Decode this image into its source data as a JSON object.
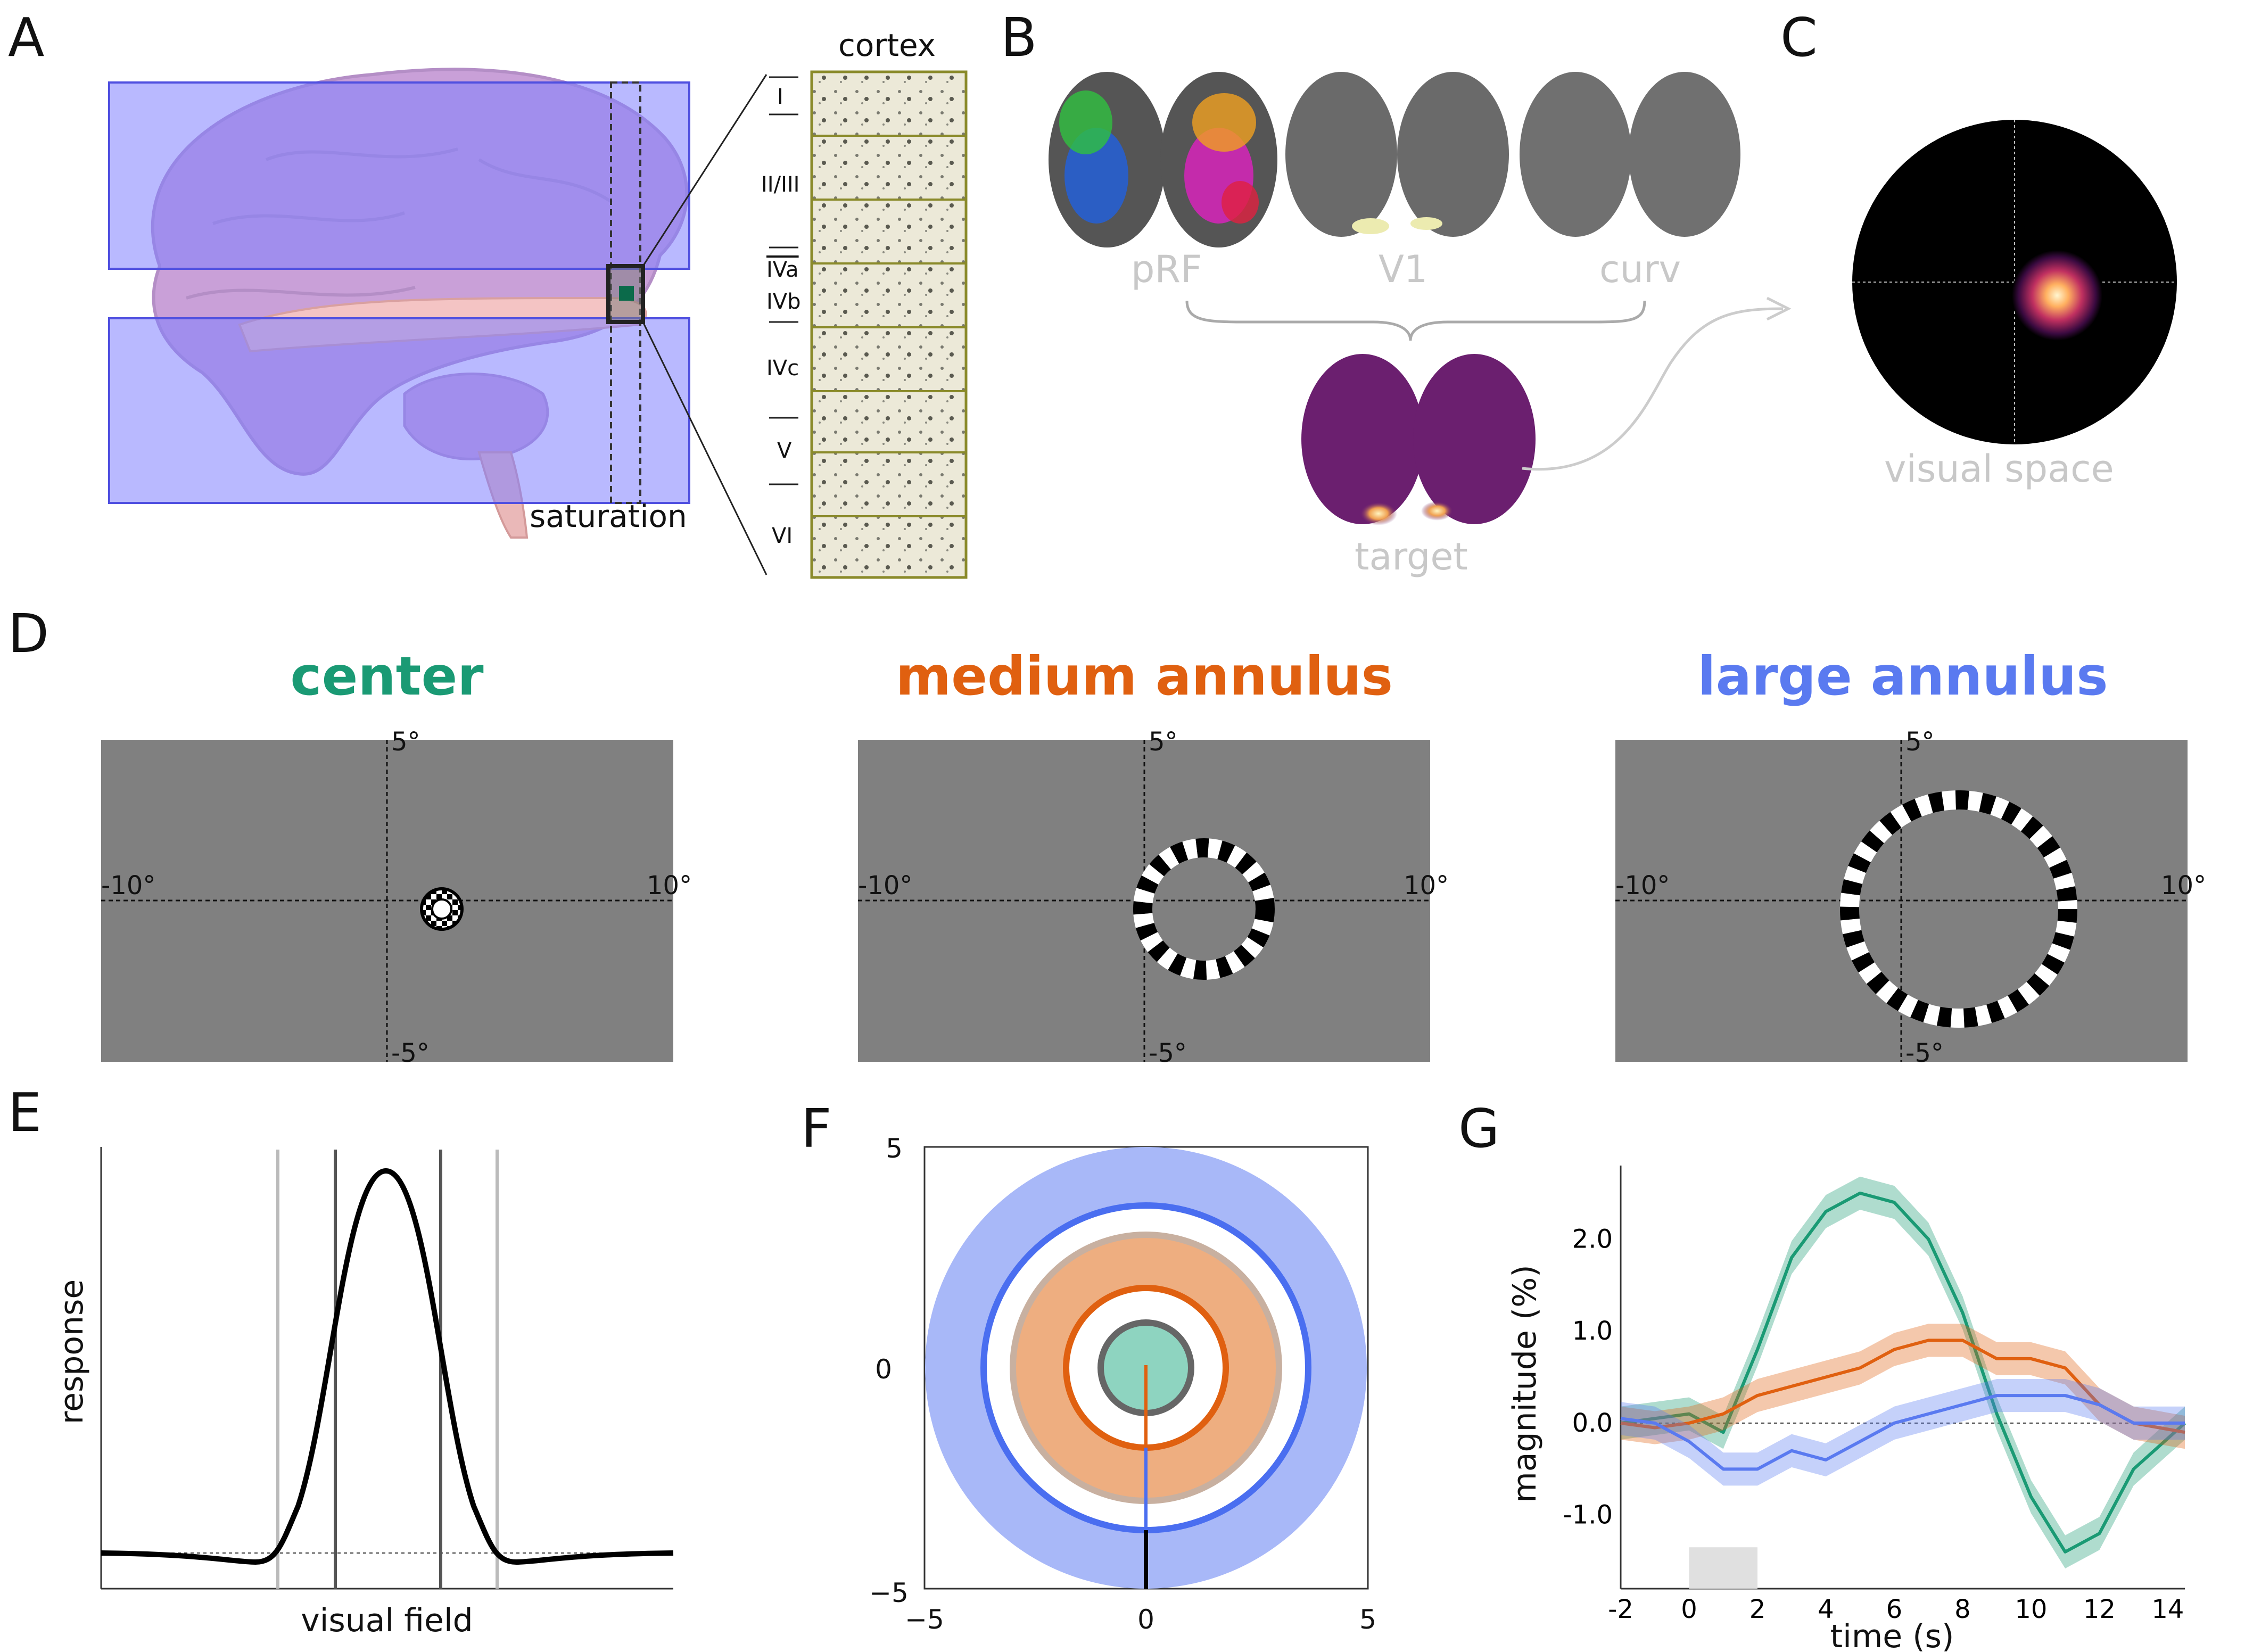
{
  "panel_labels": [
    "A",
    "B",
    "C",
    "D",
    "E",
    "F",
    "G"
  ],
  "panelA": {
    "cortex_label": "cortex",
    "saturation_label": "saturation",
    "layers": [
      "I",
      "II/III",
      "IVa",
      "IVb",
      "IVc",
      "V",
      "VI"
    ],
    "colors": {
      "saturation_band": "#7f7fff",
      "cortex": "#8a8a2a",
      "brain": "#c9a0d8"
    }
  },
  "panelB": {
    "labels": [
      "pRF",
      "V1",
      "curv"
    ],
    "target_label": "target"
  },
  "panelC": {
    "label": "visual space"
  },
  "panelD": {
    "titles": [
      {
        "text": "center",
        "color": "#1a9a74"
      },
      {
        "text": "medium annulus",
        "color": "#e06010"
      },
      {
        "text": "large annulus",
        "color": "#5a7af0"
      }
    ],
    "axis_labels": {
      "top": "5°",
      "bottom": "-5°",
      "left": "-10°",
      "right": "10°"
    }
  },
  "panelE": {
    "xlabel": "visual field",
    "ylabel": "response"
  },
  "panelF": {
    "xticks": [
      "−5",
      "0",
      "5"
    ],
    "yticks": [
      "5",
      "0",
      "−5"
    ]
  },
  "chart_data": {
    "type": "line",
    "xlabel": "time (s)",
    "ylabel": "magnitude (%)",
    "xlim": [
      -2,
      14.5
    ],
    "ylim": [
      -1.8,
      2.8
    ],
    "xticks": [
      "-2",
      "0",
      "2",
      "4",
      "6",
      "8",
      "10",
      "12",
      "14"
    ],
    "yticks": [
      "2.0",
      "1.0",
      "0.0",
      "-1.0"
    ],
    "stimulus_period": [
      0,
      2
    ],
    "series": [
      {
        "color": "#1a9a74",
        "x": [
          -2,
          -1,
          0,
          1,
          2,
          3,
          4,
          5,
          6,
          7,
          8,
          9,
          10,
          11,
          12,
          13,
          14.5
        ],
        "values": [
          0.0,
          0.05,
          0.1,
          -0.1,
          0.8,
          1.8,
          2.3,
          2.5,
          2.4,
          2.0,
          1.2,
          0.1,
          -0.8,
          -1.4,
          -1.2,
          -0.5,
          0.0
        ]
      },
      {
        "color": "#e06010",
        "x": [
          -2,
          -1,
          0,
          1,
          2,
          3,
          4,
          5,
          6,
          7,
          8,
          9,
          10,
          11,
          12,
          13,
          14.5
        ],
        "values": [
          0.0,
          -0.05,
          0.0,
          0.1,
          0.3,
          0.4,
          0.5,
          0.6,
          0.8,
          0.9,
          0.9,
          0.7,
          0.7,
          0.6,
          0.2,
          0.0,
          -0.1
        ]
      },
      {
        "color": "#5a7af0",
        "x": [
          -2,
          -1,
          0,
          1,
          2,
          3,
          4,
          5,
          6,
          7,
          8,
          9,
          10,
          11,
          12,
          13,
          14.5
        ],
        "values": [
          0.05,
          0.0,
          -0.2,
          -0.5,
          -0.5,
          -0.3,
          -0.4,
          -0.2,
          0.0,
          0.1,
          0.2,
          0.3,
          0.3,
          0.3,
          0.2,
          0.0,
          0.0
        ]
      }
    ]
  }
}
